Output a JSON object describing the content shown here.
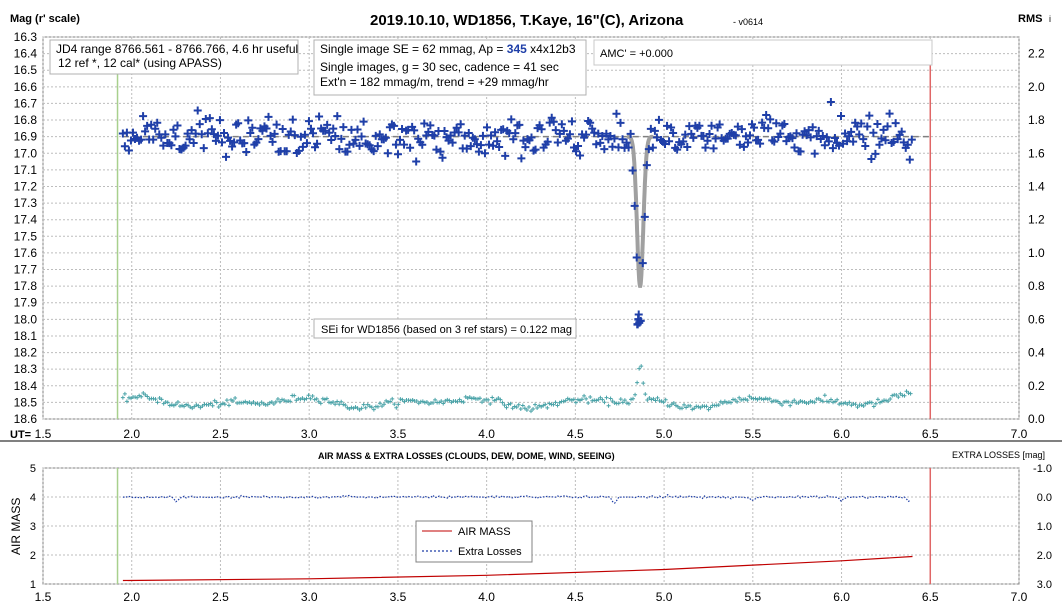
{
  "chart_data": [
    {
      "type": "scatter",
      "title": "2019.10.10, WD1856, T.Kaye, 16\"(C), Arizona",
      "version": "- v0614",
      "ylabel": "Mag (r' scale)",
      "y2label": "RMS",
      "y2label_suffix": "i",
      "xlabel": "UT=",
      "xlim": [
        1.5,
        7.0
      ],
      "ylim": [
        16.3,
        18.6
      ],
      "y2lim": [
        0.0,
        2.3
      ],
      "y_reversed": true,
      "grid": true,
      "x_ticks": [
        "1.5",
        "2.0",
        "2.5",
        "3.0",
        "3.5",
        "4.0",
        "4.5",
        "5.0",
        "5.5",
        "6.0",
        "6.5",
        "7.0"
      ],
      "y_ticks": [
        "16.3",
        "16.4",
        "16.5",
        "16.6",
        "16.7",
        "16.8",
        "16.9",
        "17.0",
        "17.1",
        "17.2",
        "17.3",
        "17.4",
        "17.5",
        "17.6",
        "17.7",
        "17.8",
        "17.9",
        "18.0",
        "18.1",
        "18.2",
        "18.3",
        "18.4",
        "18.5",
        "18.6"
      ],
      "y2_ticks": [
        "0.0",
        "0.2",
        "0.4",
        "0.6",
        "0.8",
        "1.0",
        "1.2",
        "1.4",
        "1.6",
        "1.8",
        "2.0",
        "2.2"
      ],
      "vertical_markers": [
        {
          "x": 1.92,
          "color": "#a8d08d"
        },
        {
          "x": 6.5,
          "color": "#e06666"
        }
      ],
      "reference_line": {
        "y": 16.9,
        "x_start": 1.95,
        "x_end": 6.5
      },
      "annotations": {
        "range_line1": "JD4 range 8766.561 - 8766.766, 4.6 hr useful",
        "range_line2": "12 ref *, 12 cal* (using APASS)",
        "se_prefix": "Single image SE = 62 mmag, Ap = ",
        "se_ap": "345",
        "se_suffix": " x4x12b3",
        "single_images": "Single images, g = 30 sec, cadence = 41 sec",
        "extn": "Ext'n = 182 mmag/m, trend = +29 mmag/hr",
        "amc": "AMC' = +0.000",
        "sei": "SEi for WD1856 (based on 3 ref stars) = 0.122 mag"
      },
      "series": [
        {
          "role": "magnitude",
          "marker": "+",
          "color": "#1f3fa8",
          "baseline_mag": 16.9,
          "scatter_mag": 0.06,
          "x_range": [
            1.95,
            6.4
          ],
          "cadence_hr": 0.0114,
          "transit": {
            "center": 4.865,
            "depth": 1.1,
            "ingress_start": 4.74,
            "egress_end": 4.99
          },
          "highlight_points": [
            {
              "x": 4.855,
              "y": 18.0
            },
            {
              "x": 4.86,
              "y": 18.02
            },
            {
              "x": 4.85,
              "y": 18.03
            }
          ]
        },
        {
          "role": "model",
          "color": "#a0a0a0",
          "shape": "transit-dip",
          "center": 4.865,
          "depth": 0.9,
          "x_range": [
            4.8,
            4.93
          ]
        },
        {
          "role": "rms",
          "marker": "+",
          "color": "#4aa3a8",
          "baseline_rms": 0.1,
          "x_range": [
            1.95,
            6.4
          ],
          "peak": {
            "x": 4.865,
            "y": 0.3
          }
        }
      ]
    },
    {
      "type": "line",
      "title": "AIR MASS & EXTRA LOSSES (CLOUDS, DEW, DOME, WIND, SEEING)",
      "ylabel": "AIR MASS",
      "y2label": "EXTRA LOSSES [mag]",
      "xlim": [
        1.5,
        7.0
      ],
      "ylim": [
        1,
        5
      ],
      "y2lim": [
        3.0,
        -1.0
      ],
      "grid": true,
      "x_ticks": [
        "1.5",
        "2.0",
        "2.5",
        "3.0",
        "3.5",
        "4.0",
        "4.5",
        "5.0",
        "5.5",
        "6.0",
        "6.5",
        "7.0"
      ],
      "y_ticks": [
        "1",
        "2",
        "3",
        "4",
        "5"
      ],
      "y2_ticks": [
        "3.0",
        "2.0",
        "1.0",
        "0.0",
        "-1.0"
      ],
      "vertical_markers": [
        {
          "x": 1.92,
          "color": "#a8d08d"
        },
        {
          "x": 6.5,
          "color": "#e06666"
        }
      ],
      "legend": {
        "placement": "center",
        "entries": [
          "AIR MASS",
          "Extra Losses"
        ]
      },
      "series": [
        {
          "name": "AIR MASS",
          "color": "#c00000",
          "x": [
            1.95,
            3.0,
            4.0,
            5.0,
            6.0,
            6.4
          ],
          "values": [
            1.12,
            1.18,
            1.3,
            1.5,
            1.8,
            1.95
          ]
        },
        {
          "name": "Extra Losses",
          "color": "#1f3fa8",
          "style": "dotted",
          "x_range": [
            1.95,
            6.4
          ],
          "baseline": 0.0,
          "dips": [
            {
              "x": 2.25,
              "value": 0.15
            },
            {
              "x": 4.72,
              "value": 0.2
            },
            {
              "x": 5.5,
              "value": 0.12
            },
            {
              "x": 6.0,
              "value": 0.1
            },
            {
              "x": 6.38,
              "value": 0.15
            }
          ]
        }
      ]
    }
  ]
}
